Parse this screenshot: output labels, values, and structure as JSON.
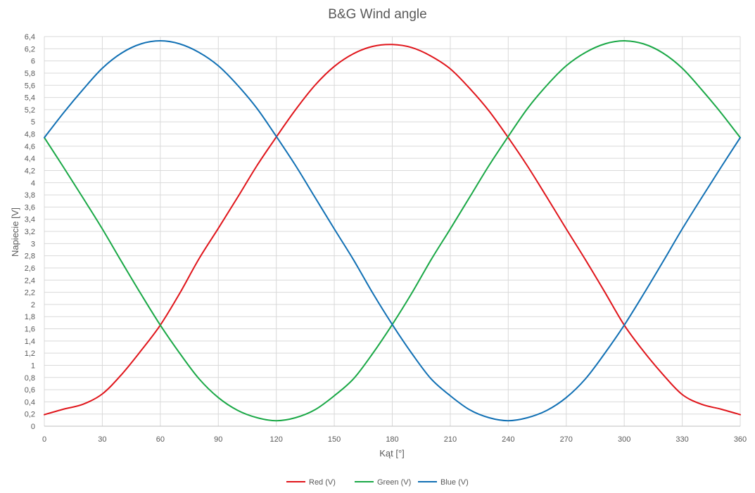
{
  "chart_data": {
    "type": "line",
    "title": "B&G Wind angle",
    "xlabel": "Kąt [°]",
    "ylabel": "Napiecie [V]",
    "xlim": [
      0,
      360
    ],
    "ylim": [
      0,
      6.4
    ],
    "xticks": [
      "0",
      "30",
      "60",
      "90",
      "120",
      "150",
      "180",
      "210",
      "240",
      "270",
      "300",
      "330",
      "360"
    ],
    "yticks": [
      "0",
      "0,2",
      "0,4",
      "0,6",
      "0,8",
      "1",
      "1,2",
      "1,4",
      "1,6",
      "1,8",
      "2",
      "2,2",
      "2,4",
      "2,6",
      "2,8",
      "3",
      "3,2",
      "3,4",
      "3,6",
      "3,8",
      "4",
      "4,2",
      "4,4",
      "4,6",
      "4,8",
      "5",
      "5,2",
      "5,4",
      "5,6",
      "5,8",
      "6",
      "6,2",
      "6,4"
    ],
    "grid": true,
    "legend_position": "bottom",
    "x": [
      0,
      10,
      20,
      30,
      40,
      50,
      60,
      70,
      80,
      90,
      100,
      110,
      120,
      130,
      140,
      150,
      160,
      170,
      180,
      190,
      200,
      210,
      220,
      230,
      240,
      250,
      260,
      270,
      280,
      290,
      300,
      310,
      320,
      330,
      340,
      350,
      360
    ],
    "series": [
      {
        "name": "Red (V)",
        "color": "#e0151b",
        "values": [
          0.19,
          0.28,
          0.36,
          0.53,
          0.85,
          1.24,
          1.66,
          2.18,
          2.75,
          3.25,
          3.76,
          4.28,
          4.75,
          5.2,
          5.6,
          5.91,
          6.12,
          6.24,
          6.27,
          6.22,
          6.08,
          5.87,
          5.55,
          5.18,
          4.74,
          4.27,
          3.76,
          3.24,
          2.73,
          2.2,
          1.66,
          1.23,
          0.85,
          0.52,
          0.36,
          0.28,
          0.19
        ]
      },
      {
        "name": "Green (V)",
        "color": "#1aa846",
        "values": [
          4.74,
          4.25,
          3.75,
          3.24,
          2.7,
          2.17,
          1.66,
          1.2,
          0.78,
          0.47,
          0.26,
          0.14,
          0.09,
          0.14,
          0.27,
          0.5,
          0.78,
          1.2,
          1.67,
          2.18,
          2.73,
          3.24,
          3.76,
          4.28,
          4.76,
          5.22,
          5.6,
          5.92,
          6.14,
          6.28,
          6.33,
          6.28,
          6.13,
          5.88,
          5.53,
          5.15,
          4.74
        ]
      },
      {
        "name": "Blue (V)",
        "color": "#1170b4",
        "values": [
          4.74,
          5.15,
          5.53,
          5.88,
          6.13,
          6.28,
          6.33,
          6.28,
          6.14,
          5.92,
          5.6,
          5.22,
          4.76,
          4.28,
          3.76,
          3.24,
          2.73,
          2.18,
          1.67,
          1.2,
          0.78,
          0.5,
          0.27,
          0.14,
          0.09,
          0.14,
          0.26,
          0.47,
          0.78,
          1.2,
          1.66,
          2.17,
          2.7,
          3.24,
          3.75,
          4.25,
          4.74
        ]
      }
    ]
  }
}
